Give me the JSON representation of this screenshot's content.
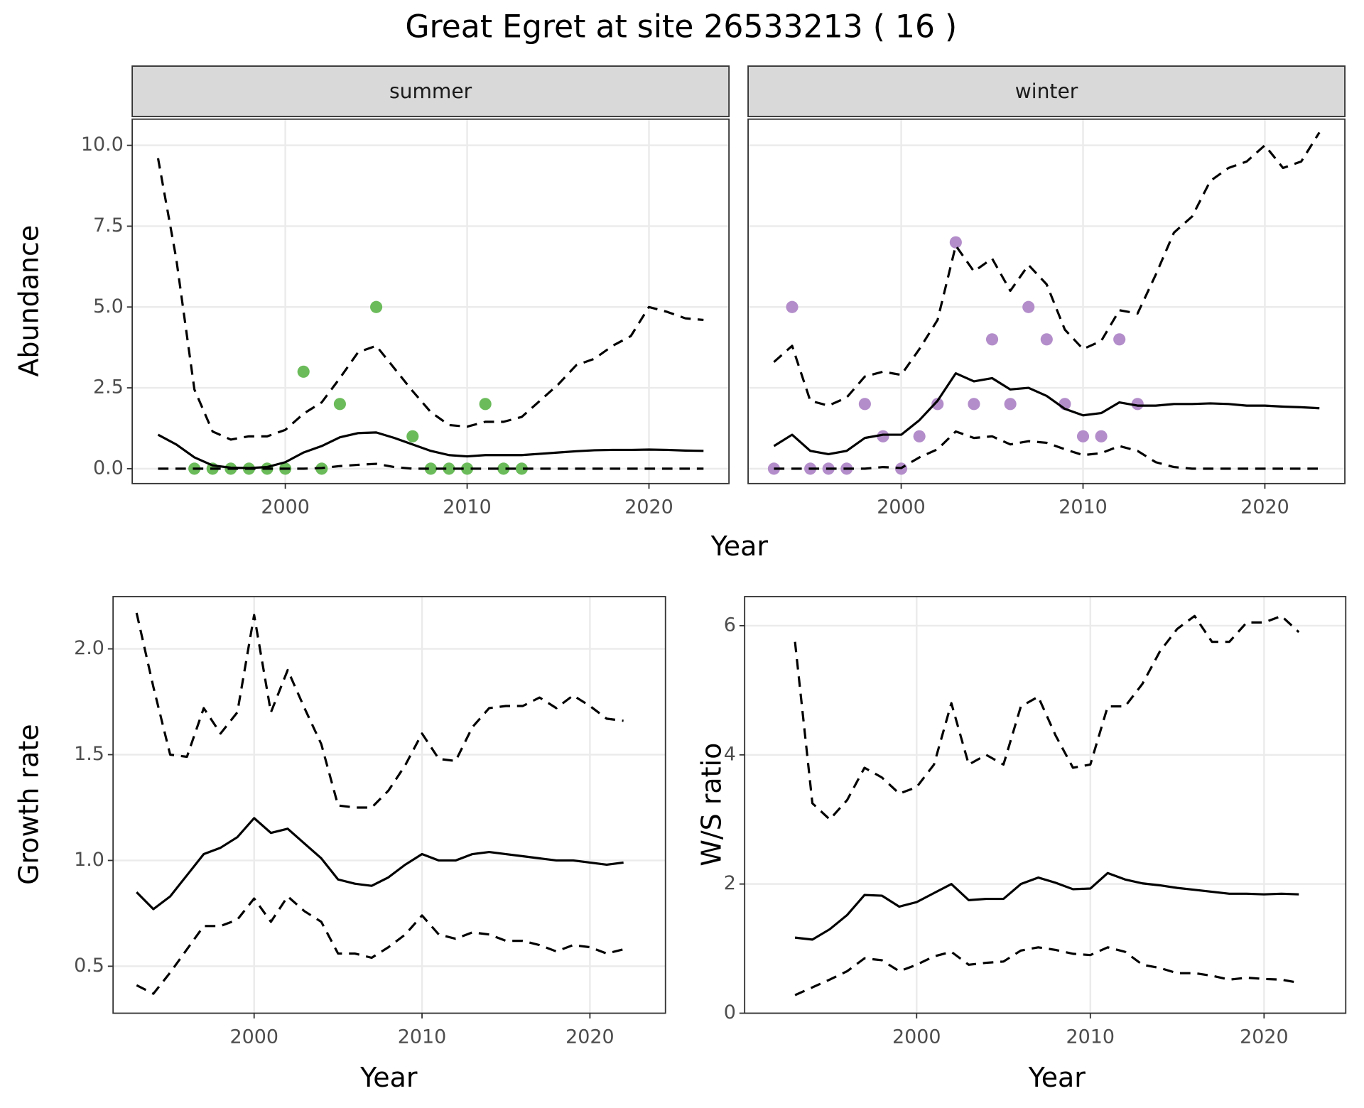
{
  "title": "Great Egret at site 26533213 ( 16 )",
  "chart_data": [
    {
      "type": "line",
      "facet": "summer",
      "xlabel": "Year",
      "ylabel": "Abundance",
      "x": [
        1993,
        1994,
        1995,
        1996,
        1997,
        1998,
        1999,
        2000,
        2001,
        2002,
        2003,
        2004,
        2005,
        2006,
        2007,
        2008,
        2009,
        2010,
        2011,
        2012,
        2013,
        2014,
        2015,
        2016,
        2017,
        2018,
        2019,
        2020,
        2021,
        2022,
        2023
      ],
      "xlim": [
        1991.58,
        2024.4
      ],
      "xticks": [
        2000,
        2010,
        2020
      ],
      "ylim": [
        -0.46,
        10.81
      ],
      "yticks": [
        {
          "value": 0,
          "label": "0.0"
        },
        2.5,
        {
          "value": 5,
          "label": "5.0"
        },
        7.5,
        {
          "value": 10,
          "label": "10.0"
        }
      ],
      "grid": true,
      "series": [
        {
          "mark": "point",
          "color": "#6bbb5a",
          "values": [
            null,
            null,
            0,
            0,
            0,
            0,
            0,
            0,
            3,
            0,
            2,
            null,
            5,
            null,
            1,
            0,
            0,
            0,
            2,
            0,
            0,
            null,
            null,
            null,
            null,
            null,
            null,
            null,
            null,
            null,
            null
          ]
        },
        {
          "mark": "line",
          "linetype": "solid",
          "color": "#000000",
          "values": [
            1.05,
            0.75,
            0.35,
            0.1,
            0.03,
            0.02,
            0.05,
            0.2,
            0.5,
            0.7,
            0.97,
            1.1,
            1.12,
            0.95,
            0.75,
            0.55,
            0.42,
            0.38,
            0.42,
            0.42,
            0.42,
            0.46,
            0.5,
            0.54,
            0.57,
            0.58,
            0.58,
            0.59,
            0.58,
            0.56,
            0.55
          ]
        },
        {
          "mark": "line",
          "linetype": "dashed",
          "color": "#000000",
          "values": [
            9.6,
            6.5,
            2.45,
            1.15,
            0.9,
            1.0,
            1.0,
            1.2,
            1.7,
            2.05,
            2.8,
            3.6,
            3.8,
            3.1,
            2.4,
            1.75,
            1.35,
            1.3,
            1.45,
            1.45,
            1.6,
            2.1,
            2.6,
            3.2,
            3.4,
            3.8,
            4.1,
            5.0,
            4.85,
            4.65,
            4.6
          ]
        },
        {
          "mark": "line",
          "linetype": "dashed",
          "color": "#000000",
          "values": [
            0,
            0,
            0,
            0,
            0,
            0,
            0,
            0,
            0,
            0.02,
            0.08,
            0.12,
            0.15,
            0.05,
            0,
            0,
            0,
            0,
            0,
            0,
            0,
            0,
            0,
            0,
            0,
            0,
            0,
            0,
            0,
            0,
            0
          ]
        }
      ]
    },
    {
      "type": "line",
      "facet": "winter",
      "sharey": true,
      "x": [
        1993,
        1994,
        1995,
        1996,
        1997,
        1998,
        1999,
        2000,
        2001,
        2002,
        2003,
        2004,
        2005,
        2006,
        2007,
        2008,
        2009,
        2010,
        2011,
        2012,
        2013,
        2014,
        2015,
        2016,
        2017,
        2018,
        2019,
        2020,
        2021,
        2022,
        2023
      ],
      "xlim": [
        1991.58,
        2024.4
      ],
      "xticks": [
        2000,
        2010,
        2020
      ],
      "ylim": [
        -0.46,
        10.81
      ],
      "yticks": [
        {
          "value": 0,
          "label": "0.0"
        },
        2.5,
        {
          "value": 5,
          "label": "5.0"
        },
        7.5,
        {
          "value": 10,
          "label": "10.0"
        }
      ],
      "grid": true,
      "series": [
        {
          "mark": "point",
          "color": "#b38dca",
          "values": [
            0,
            5,
            0,
            0,
            0,
            2,
            1,
            0,
            1,
            2,
            7,
            2,
            4,
            2,
            5,
            4,
            2,
            1,
            1,
            4,
            2,
            null,
            null,
            null,
            null,
            null,
            null,
            null,
            null,
            null,
            null
          ]
        },
        {
          "mark": "line",
          "linetype": "solid",
          "color": "#000000",
          "values": [
            0.7,
            1.05,
            0.55,
            0.45,
            0.55,
            0.95,
            1.05,
            1.05,
            1.5,
            2.1,
            2.95,
            2.7,
            2.8,
            2.45,
            2.5,
            2.25,
            1.85,
            1.65,
            1.72,
            2.05,
            1.95,
            1.95,
            2.0,
            2.0,
            2.02,
            2.0,
            1.95,
            1.95,
            1.92,
            1.9,
            1.87
          ]
        },
        {
          "mark": "line",
          "linetype": "dashed",
          "color": "#000000",
          "values": [
            3.3,
            3.8,
            2.1,
            1.95,
            2.2,
            2.85,
            3.0,
            2.9,
            3.7,
            4.6,
            6.9,
            6.1,
            6.5,
            5.5,
            6.3,
            5.7,
            4.3,
            3.7,
            3.95,
            4.9,
            4.8,
            6.0,
            7.3,
            7.8,
            8.9,
            9.3,
            9.5,
            10.0,
            9.3,
            9.5,
            10.4
          ]
        },
        {
          "mark": "line",
          "linetype": "dashed",
          "color": "#000000",
          "values": [
            0,
            0,
            0,
            0,
            0,
            0,
            0.05,
            0.02,
            0.35,
            0.6,
            1.15,
            0.95,
            1.0,
            0.75,
            0.85,
            0.8,
            0.6,
            0.42,
            0.48,
            0.7,
            0.55,
            0.2,
            0.05,
            0,
            0,
            0,
            0,
            0,
            0,
            0,
            0
          ]
        }
      ]
    },
    {
      "type": "line",
      "xlabel": "Year",
      "ylabel": "Growth rate",
      "x": [
        1993,
        1994,
        1995,
        1996,
        1997,
        1998,
        1999,
        2000,
        2001,
        2002,
        2003,
        2004,
        2005,
        2006,
        2007,
        2008,
        2009,
        2010,
        2011,
        2012,
        2013,
        2014,
        2015,
        2016,
        2017,
        2018,
        2019,
        2020,
        2021,
        2022
      ],
      "xlim": [
        1991.6,
        2024.5
      ],
      "xticks": [
        2000,
        2010,
        2020
      ],
      "ylim": [
        0.278,
        2.247
      ],
      "yticks": [
        0.5,
        {
          "value": 1,
          "label": "1.0"
        },
        1.5,
        {
          "value": 2,
          "label": "2.0"
        }
      ],
      "grid": true,
      "series": [
        {
          "mark": "line",
          "linetype": "solid",
          "color": "#000000",
          "values": [
            0.85,
            0.77,
            0.83,
            0.93,
            1.03,
            1.06,
            1.11,
            1.2,
            1.13,
            1.15,
            1.08,
            1.01,
            0.91,
            0.89,
            0.88,
            0.92,
            0.98,
            1.03,
            1.0,
            1.0,
            1.03,
            1.04,
            1.03,
            1.02,
            1.01,
            1.0,
            1.0,
            0.99,
            0.98,
            0.99
          ]
        },
        {
          "mark": "line",
          "linetype": "dashed",
          "color": "#000000",
          "values": [
            2.17,
            1.82,
            1.5,
            1.49,
            1.72,
            1.6,
            1.7,
            2.16,
            1.7,
            1.9,
            1.72,
            1.55,
            1.26,
            1.25,
            1.25,
            1.33,
            1.45,
            1.6,
            1.48,
            1.47,
            1.63,
            1.72,
            1.73,
            1.73,
            1.77,
            1.72,
            1.78,
            1.73,
            1.67,
            1.66
          ]
        },
        {
          "mark": "line",
          "linetype": "dashed",
          "color": "#000000",
          "values": [
            0.41,
            0.37,
            0.47,
            0.58,
            0.69,
            0.69,
            0.72,
            0.82,
            0.71,
            0.83,
            0.76,
            0.71,
            0.56,
            0.56,
            0.54,
            0.59,
            0.65,
            0.74,
            0.65,
            0.63,
            0.66,
            0.65,
            0.62,
            0.62,
            0.6,
            0.57,
            0.6,
            0.59,
            0.56,
            0.58
          ]
        }
      ]
    },
    {
      "type": "line",
      "xlabel": "Year",
      "ylabel": "W/S ratio",
      "x": [
        1993,
        1994,
        1995,
        1996,
        1997,
        1998,
        1999,
        2000,
        2001,
        2002,
        2003,
        2004,
        2005,
        2006,
        2007,
        2008,
        2009,
        2010,
        2011,
        2012,
        2013,
        2014,
        2015,
        2016,
        2017,
        2018,
        2019,
        2020,
        2021,
        2022
      ],
      "xlim": [
        1990.1,
        2024.7
      ],
      "xticks": [
        2000,
        2010,
        2020
      ],
      "ylim": [
        0,
        6.45
      ],
      "yticks": [
        0,
        2,
        4,
        6
      ],
      "grid": true,
      "series": [
        {
          "mark": "line",
          "linetype": "solid",
          "color": "#000000",
          "values": [
            1.17,
            1.14,
            1.3,
            1.52,
            1.83,
            1.82,
            1.65,
            1.72,
            1.86,
            2.0,
            1.75,
            1.77,
            1.77,
            2.0,
            2.1,
            2.02,
            1.92,
            1.93,
            2.17,
            2.07,
            2.01,
            1.98,
            1.94,
            1.91,
            1.88,
            1.85,
            1.85,
            1.84,
            1.85,
            1.84
          ]
        },
        {
          "mark": "line",
          "linetype": "dashed",
          "color": "#000000",
          "values": [
            5.75,
            3.25,
            3.0,
            3.3,
            3.8,
            3.65,
            3.4,
            3.5,
            3.85,
            4.8,
            3.85,
            4.0,
            3.85,
            4.75,
            4.9,
            4.3,
            3.8,
            3.85,
            4.75,
            4.75,
            5.1,
            5.6,
            5.95,
            6.15,
            5.75,
            5.75,
            6.05,
            6.05,
            6.15,
            5.9
          ]
        },
        {
          "mark": "line",
          "linetype": "dashed",
          "color": "#000000",
          "values": [
            0.28,
            0.4,
            0.52,
            0.65,
            0.85,
            0.82,
            0.65,
            0.75,
            0.88,
            0.95,
            0.75,
            0.78,
            0.8,
            0.97,
            1.02,
            0.98,
            0.92,
            0.9,
            1.02,
            0.95,
            0.75,
            0.7,
            0.62,
            0.62,
            0.58,
            0.52,
            0.55,
            0.53,
            0.52,
            0.47
          ]
        }
      ]
    }
  ]
}
